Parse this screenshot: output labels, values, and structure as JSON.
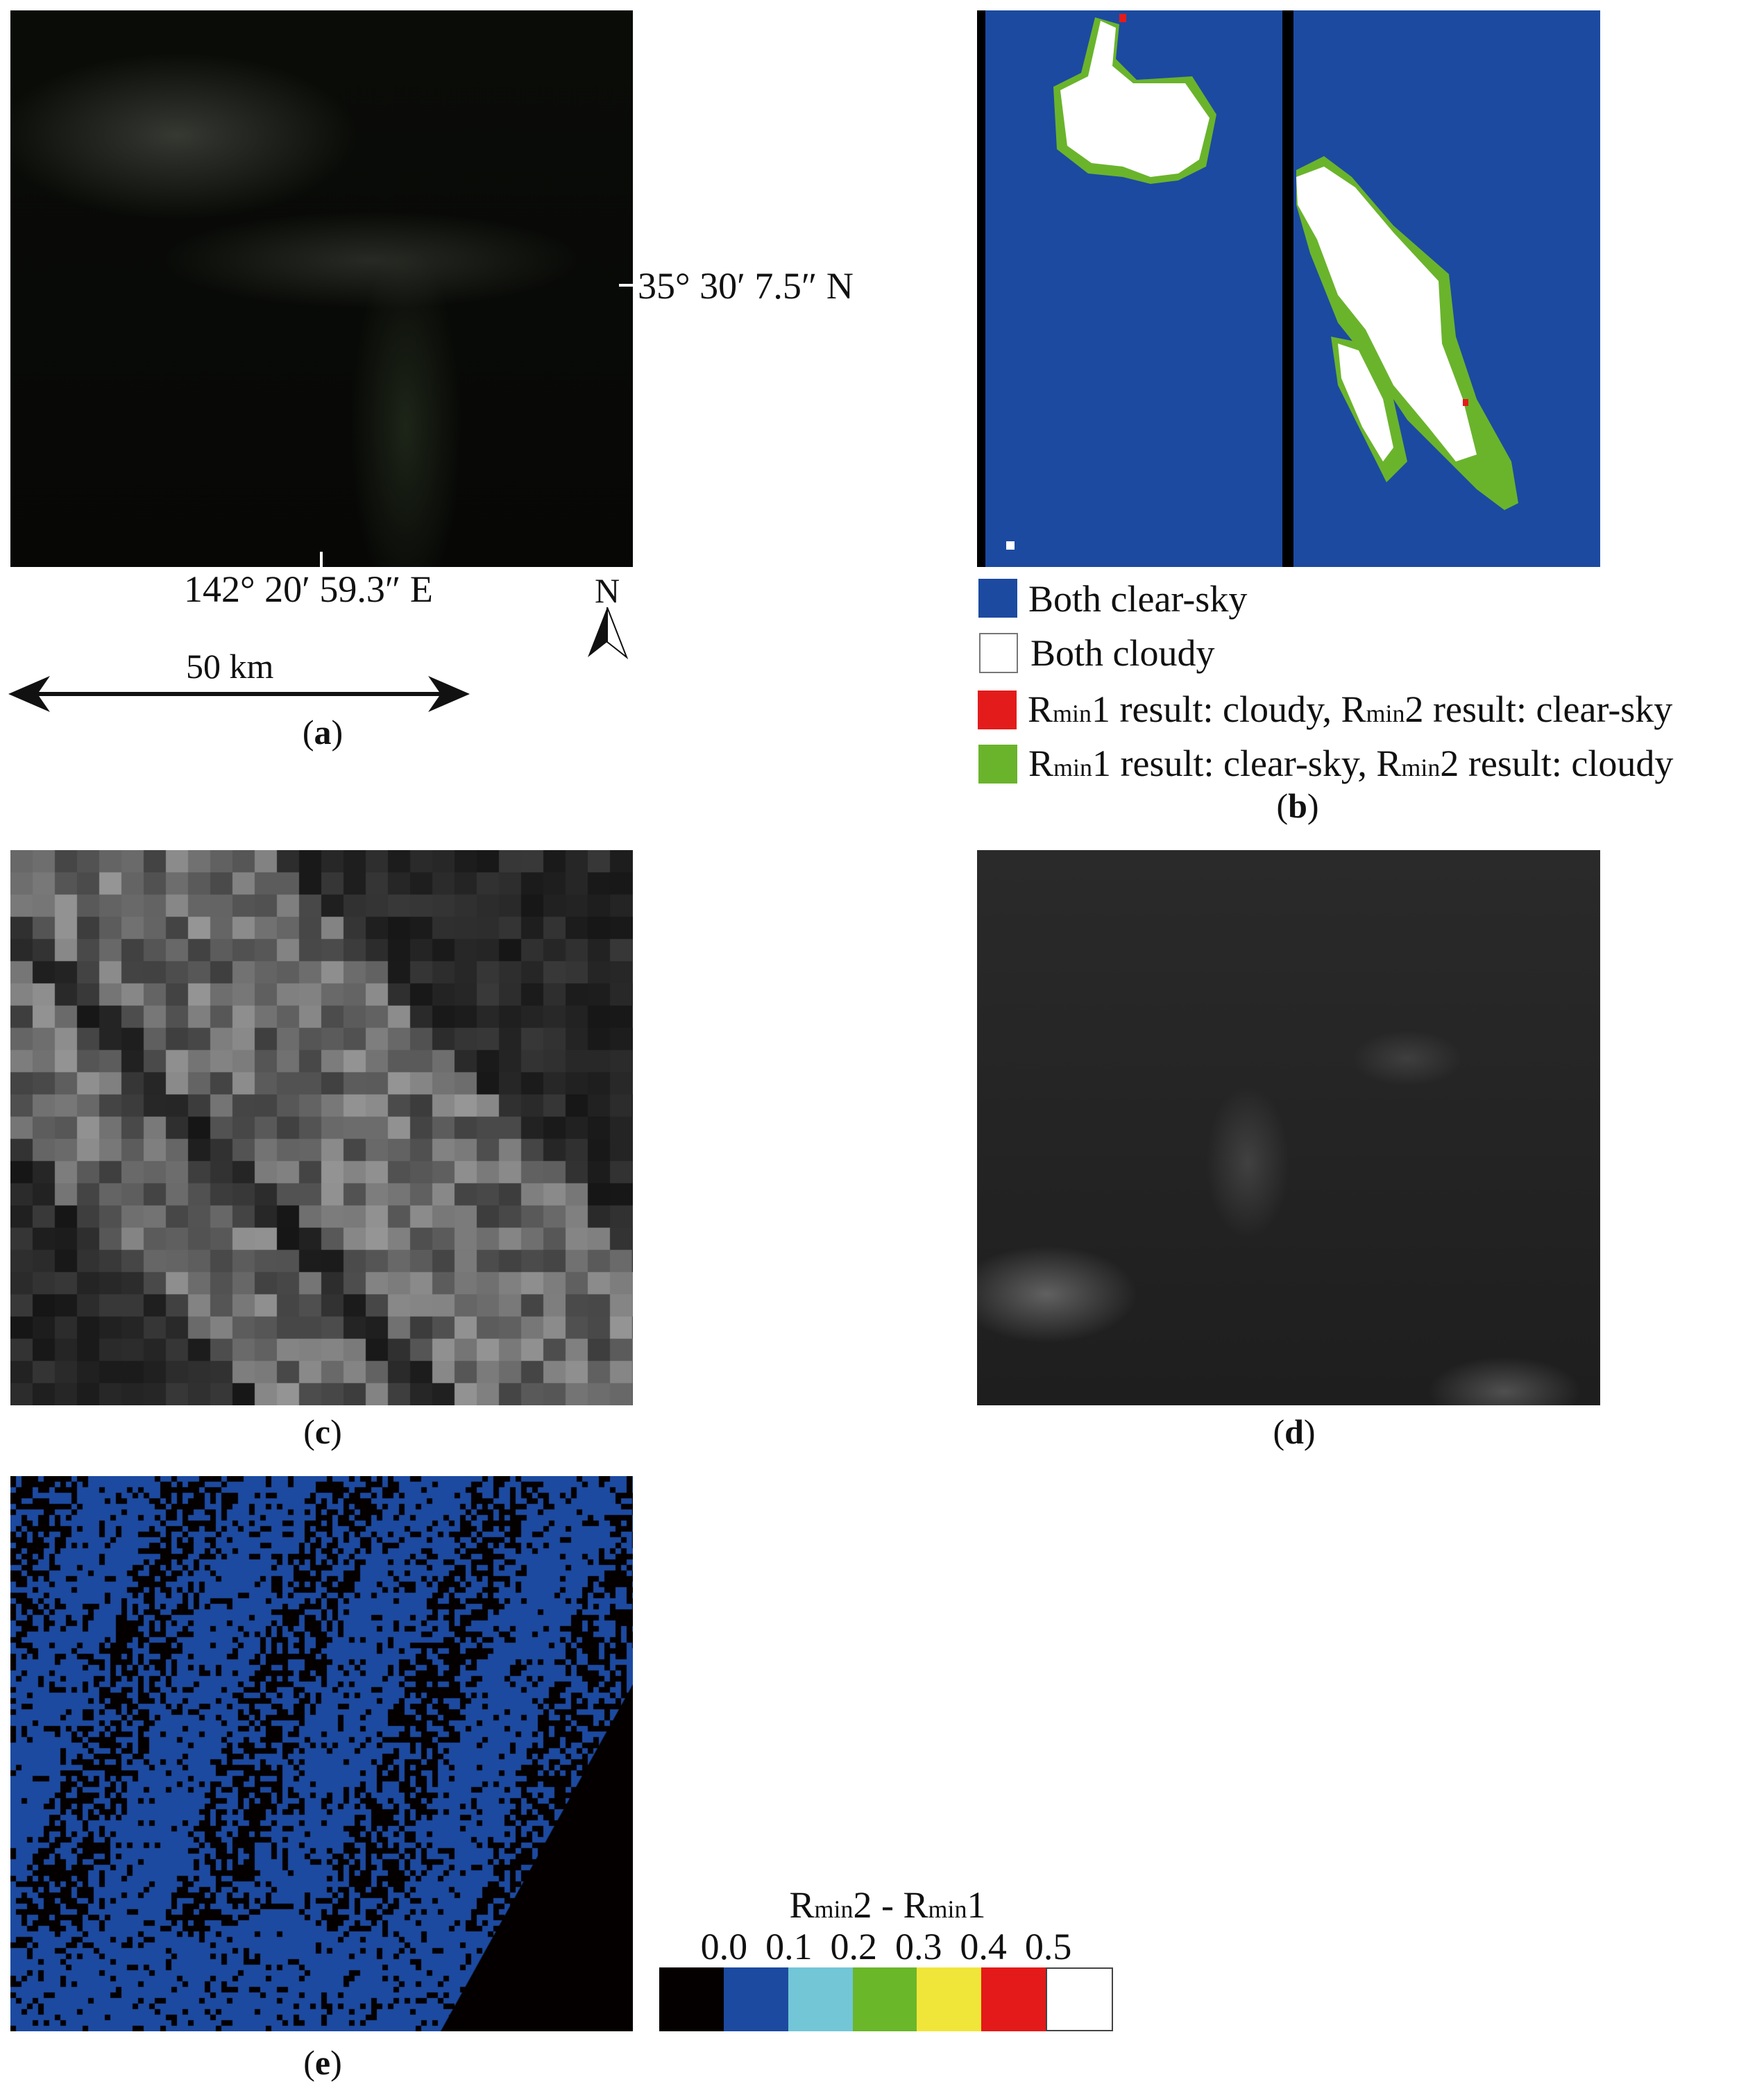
{
  "panels": {
    "a": {
      "label": "a",
      "latitude_label": "35° 30′ 7.5″ N",
      "longitude_label": "142° 20′ 59.3″ E",
      "north_label": "N",
      "scale_label": "50 km"
    },
    "b": {
      "label": "b",
      "legend": [
        {
          "text": "Both clear-sky",
          "color": "#1c4aa0"
        },
        {
          "text": "Both cloudy",
          "color": "#ffffff"
        },
        {
          "r1": "R",
          "r1sub": "min",
          "r1num": "1",
          "mid": " result: cloudy, ",
          "r2": "R",
          "r2sub": "min",
          "r2num": "2",
          "end": " result: clear-sky",
          "color": "#e31b1b"
        },
        {
          "r1": "R",
          "r1sub": "min",
          "r1num": "1",
          "mid": " result: clear-sky, ",
          "r2": "R",
          "r2sub": "min",
          "r2num": "2",
          "end": " result: cloudy",
          "color": "#6ab42c"
        }
      ]
    },
    "c": {
      "label": "c"
    },
    "d": {
      "label": "d"
    },
    "e": {
      "label": "e",
      "colorbar": {
        "title": {
          "a": "R",
          "asub": "min",
          "anum": "2",
          "sep": " - ",
          "b": "R",
          "bsub": "min",
          "bnum": "1"
        },
        "ticks": [
          "0.0",
          "0.1",
          "0.2",
          "0.3",
          "0.4",
          "0.5"
        ],
        "colors": [
          "#050000",
          "#1c4aa0",
          "#72c6d6",
          "#6ab72a",
          "#f0e63a",
          "#e41919",
          "#ffffff"
        ]
      }
    }
  }
}
